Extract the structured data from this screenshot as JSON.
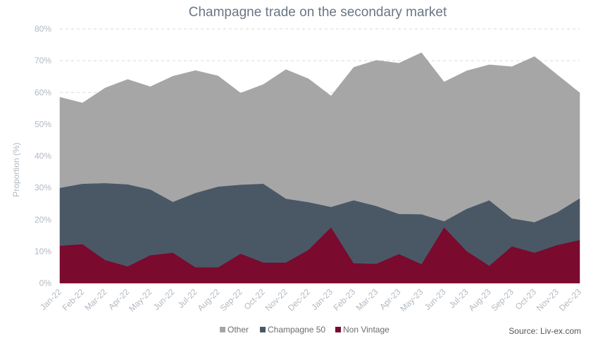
{
  "chart_data": {
    "type": "area",
    "stacked": true,
    "title": "Champagne trade on the secondary market",
    "ylabel": "Proportion (%)",
    "xlabel": "",
    "ylim": [
      0,
      80
    ],
    "yticks": [
      0,
      10,
      20,
      30,
      40,
      50,
      60,
      70,
      80
    ],
    "ytick_labels": [
      "0%",
      "10%",
      "20%",
      "30%",
      "40%",
      "50%",
      "60%",
      "70%",
      "80%"
    ],
    "grid": true,
    "legend_position": "bottom",
    "categories": [
      "Jan-22",
      "Feb-22",
      "Mar-22",
      "Apr-22",
      "May-22",
      "Jun-22",
      "Jul-22",
      "Aug-22",
      "Sep-22",
      "Oct-22",
      "Nov-22",
      "Dec-22",
      "Jan-23",
      "Feb-23",
      "Mar-23",
      "Apr-23",
      "May-23",
      "Jun-23",
      "Jul-23",
      "Aug-23",
      "Sep-23",
      "Oct-23",
      "Nov-23",
      "Dec-23"
    ],
    "series": [
      {
        "name": "Non Vintage",
        "color": "#7a0a2e",
        "values": [
          11.8,
          12.3,
          7.3,
          5.3,
          8.8,
          9.6,
          5.0,
          5.0,
          9.3,
          6.5,
          6.5,
          10.5,
          17.6,
          6.3,
          6.1,
          9.2,
          6.0,
          17.6,
          10.1,
          5.5,
          11.6,
          9.6,
          12.0,
          13.6
        ]
      },
      {
        "name": "Champagne 50",
        "color": "#4a5866",
        "values": [
          18.2,
          19.0,
          24.2,
          25.8,
          20.7,
          16.0,
          23.4,
          25.4,
          21.7,
          24.8,
          20.1,
          15.0,
          6.4,
          19.8,
          18.2,
          12.6,
          15.7,
          1.9,
          13.3,
          20.6,
          8.8,
          9.6,
          10.3,
          13.1
        ]
      },
      {
        "name": "Other",
        "color": "#a6a6a6",
        "values": [
          28.5,
          25.4,
          29.9,
          33.0,
          32.3,
          39.5,
          38.5,
          34.8,
          28.8,
          31.2,
          40.6,
          38.8,
          34.9,
          41.8,
          45.8,
          47.4,
          50.8,
          43.8,
          43.4,
          42.6,
          47.7,
          52.1,
          43.3,
          33.2
        ]
      }
    ],
    "legend": [
      "Other",
      "Champagne 50",
      "Non Vintage"
    ],
    "source": "Source: Liv-ex.com"
  }
}
